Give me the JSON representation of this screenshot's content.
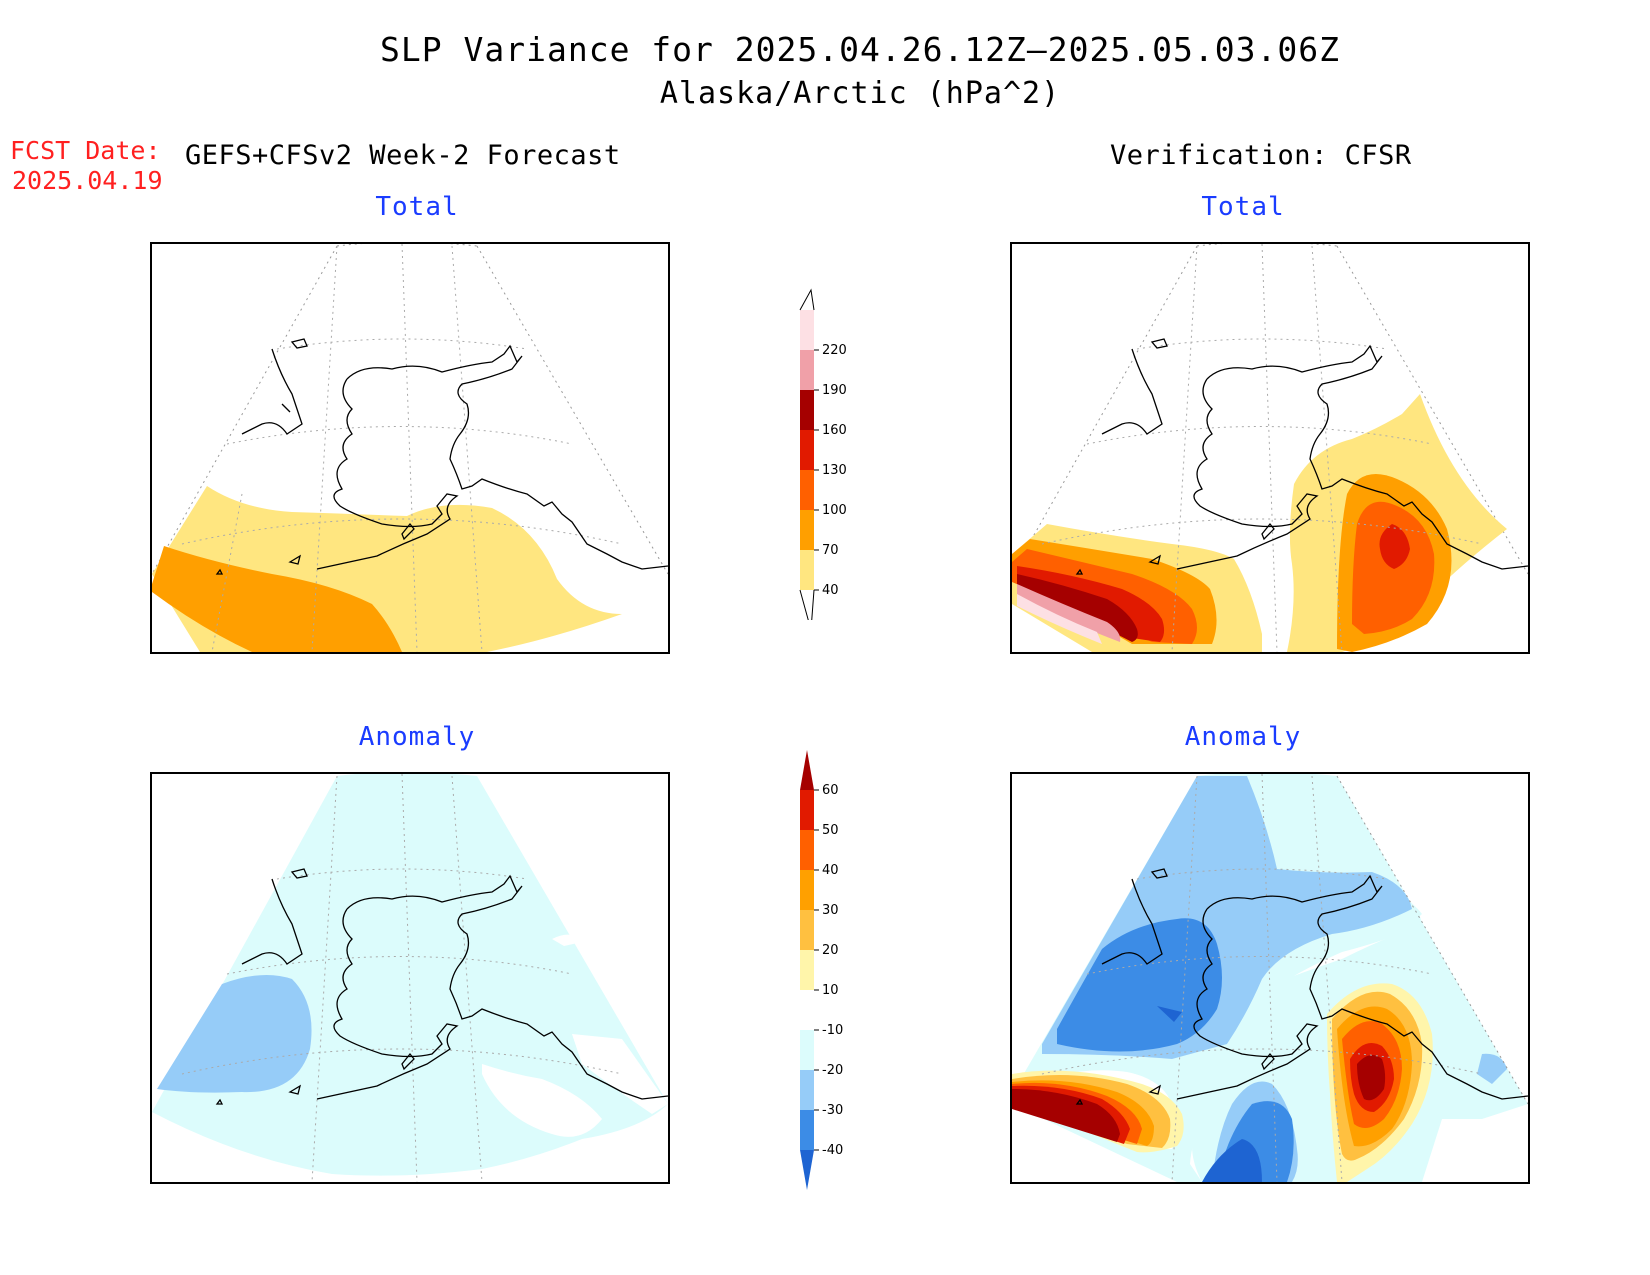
{
  "title": "SLP Variance for 2025.04.26.12Z–2025.05.03.06Z",
  "subtitle": "Alaska/Arctic (hPa^2)",
  "fcst": {
    "label": "FCST Date:",
    "date": "2025.04.19"
  },
  "left_header": "GEFS+CFSv2 Week-2 Forecast",
  "right_header": "Verification: CFSR",
  "panels": {
    "fc_total_title": "Total",
    "vr_total_title": "Total",
    "fc_anom_title": "Anomaly",
    "vr_anom_title": "Anomaly"
  },
  "colorbar_total": {
    "labels": [
      "40",
      "70",
      "100",
      "130",
      "160",
      "190",
      "220"
    ],
    "colors": [
      "#ffe680",
      "#ff9f00",
      "#ff6000",
      "#e11a00",
      "#a50000",
      "#f0a0a8",
      "#fde0e4"
    ]
  },
  "colorbar_anomaly": {
    "labels": [
      "-40",
      "-30",
      "-20",
      "-10",
      "10",
      "20",
      "30",
      "40",
      "50",
      "60"
    ],
    "colors": [
      "#1e64d2",
      "#3c8ce6",
      "#96ccf8",
      "#dcfcfc",
      "#ffffff",
      "#fff5aa",
      "#ffc040",
      "#ffa000",
      "#ff6000",
      "#e11a00",
      "#a50000"
    ]
  },
  "colors": {
    "title": "#000000",
    "panel_title": "#1a3cff",
    "fcst_date": "#ff2020"
  }
}
